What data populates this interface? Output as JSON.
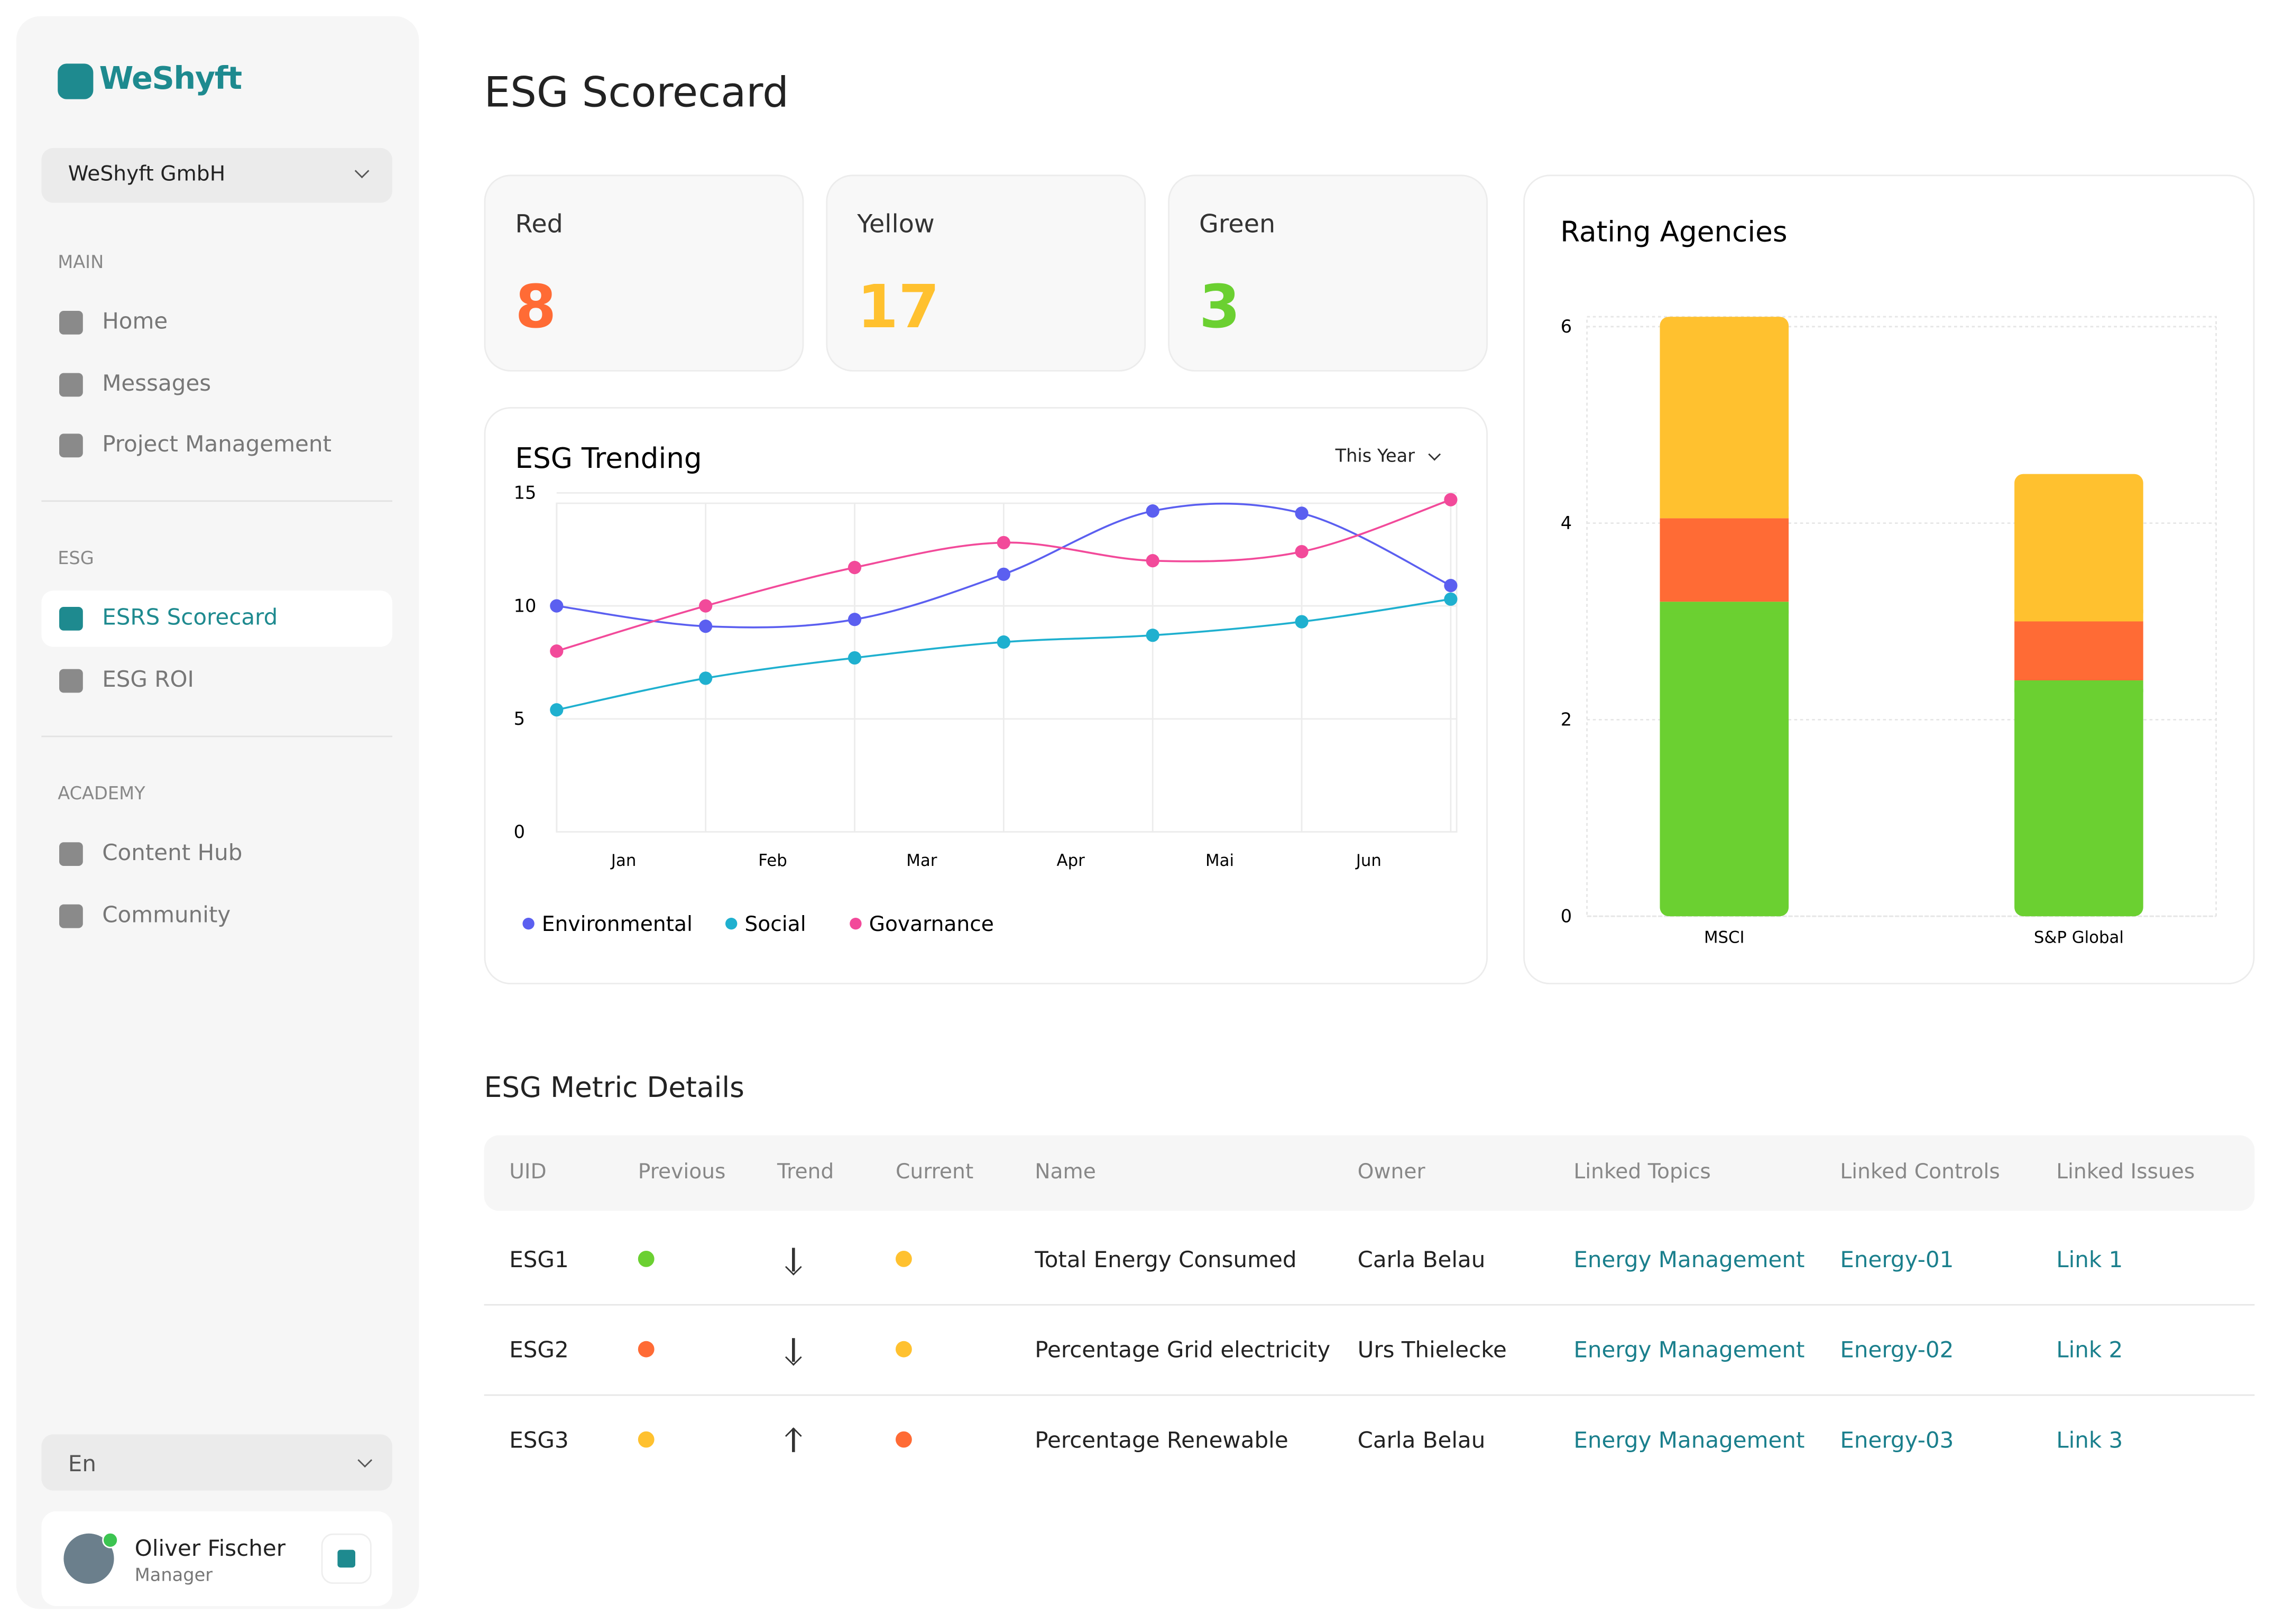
{
  "sidebar": {
    "brand": "WeShyft",
    "company": "WeShyft GmbH",
    "sections": [
      {
        "title": "MAIN",
        "items": [
          "Home",
          "Messages",
          "Project Management"
        ]
      },
      {
        "title": "ESG",
        "items": [
          "ESRS Scorecard",
          "ESG ROI"
        ]
      },
      {
        "title": "ACADEMY",
        "items": [
          "Content Hub",
          "Community"
        ]
      }
    ],
    "active": "ESRS Scorecard",
    "language": "En",
    "user": {
      "name": "Oliver Fischer",
      "role": "Manager"
    }
  },
  "header": {
    "title": "ESG Scorecard"
  },
  "stats": [
    {
      "label": "Red",
      "value": 8,
      "color": "#ff6b35"
    },
    {
      "label": "Yellow",
      "value": 17,
      "color": "#ffc12f"
    },
    {
      "label": "Green",
      "value": 3,
      "color": "#6bd031"
    }
  ],
  "chart_data": [
    {
      "type": "line",
      "title": "ESG Trending",
      "period": "This Year",
      "categories": [
        "Jan",
        "Feb",
        "Mar",
        "Apr",
        "Mai",
        "Jun",
        null
      ],
      "series": [
        {
          "name": "Environmental",
          "color": "#5b5ff0",
          "values": [
            10,
            9.1,
            9.4,
            11.4,
            14.2,
            14.1,
            10.9
          ]
        },
        {
          "name": "Social",
          "color": "#1fb0cf",
          "values": [
            5.4,
            6.8,
            7.7,
            8.4,
            8.7,
            9.3,
            10.3
          ]
        },
        {
          "name": "Govarnance",
          "color": "#f24a9a",
          "values": [
            8.0,
            10.0,
            11.7,
            12.8,
            12.0,
            12.4,
            14.7
          ]
        }
      ],
      "ylim": [
        0,
        15
      ],
      "yticks": [
        0,
        5,
        10,
        15
      ],
      "grid": true,
      "legend": "bottom"
    },
    {
      "type": "stacked-bar",
      "title": "Rating Agencies",
      "categories": [
        "MSCI",
        "S&P Global"
      ],
      "series": [
        {
          "color": "#6bd031",
          "values": [
            3.2,
            2.4
          ]
        },
        {
          "color": "#ff6b35",
          "values": [
            0.85,
            0.6
          ]
        },
        {
          "color": "#ffc12f",
          "values": [
            2.05,
            1.5
          ]
        }
      ],
      "ylim": [
        0,
        6.1
      ],
      "yticks": [
        0,
        2,
        4,
        6
      ],
      "grid": true
    }
  ],
  "table": {
    "title": "ESG Metric Details",
    "columns": [
      "UID",
      "Previous",
      "Trend",
      "Current",
      "Name",
      "Owner",
      "Linked Topics",
      "Linked Controls",
      "Linked Issues"
    ],
    "rows": [
      {
        "uid": "ESG1",
        "previous": "#6bd031",
        "trend": "down",
        "current": "#ffc12f",
        "name": "Total Energy Consumed",
        "owner": "Carla Belau",
        "topics": "Energy Management",
        "controls": "Energy-01",
        "issues": "Link 1"
      },
      {
        "uid": "ESG2",
        "previous": "#ff6b35",
        "trend": "down",
        "current": "#ffc12f",
        "name": "Percentage Grid electricity",
        "owner": "Urs Thielecke",
        "topics": "Energy Management",
        "controls": "Energy-02",
        "issues": "Link 2"
      },
      {
        "uid": "ESG3",
        "previous": "#ffc12f",
        "trend": "up",
        "current": "#ff6b35",
        "name": "Percentage Renewable",
        "owner": "Carla Belau",
        "topics": "Energy Management",
        "controls": "Energy-03",
        "issues": "Link 3"
      }
    ]
  }
}
